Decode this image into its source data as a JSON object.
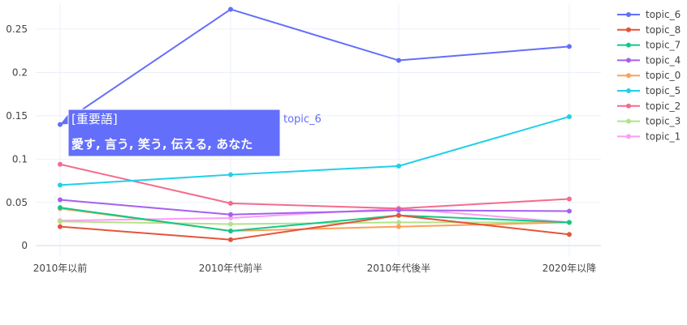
{
  "chart_data": {
    "type": "line",
    "categories": [
      "2010年以前",
      "2010年代前半",
      "2010年代後半",
      "2020年以降"
    ],
    "ylim": [
      -0.012,
      0.28
    ],
    "yticks": [
      0,
      0.05,
      0.1,
      0.15,
      0.2,
      0.25
    ],
    "ytick_labels": [
      "0",
      "0.05",
      "0.1",
      "0.15",
      "0.2",
      "0.25"
    ],
    "grid": true,
    "legend_position": "right",
    "series": [
      {
        "name": "topic_6",
        "color": "#636efa",
        "values": [
          0.14,
          0.273,
          0.214,
          0.23
        ]
      },
      {
        "name": "topic_8",
        "color": "#e4553a",
        "values": [
          0.022,
          0.007,
          0.035,
          0.013
        ]
      },
      {
        "name": "topic_7",
        "color": "#13c78c",
        "values": [
          0.044,
          0.017,
          0.035,
          0.027
        ]
      },
      {
        "name": "topic_4",
        "color": "#a560f0",
        "values": [
          0.053,
          0.036,
          0.041,
          0.04
        ]
      },
      {
        "name": "topic_0",
        "color": "#ff9f58",
        "values": [
          0.043,
          0.017,
          0.022,
          0.027
        ]
      },
      {
        "name": "topic_5",
        "color": "#1fd0ea",
        "values": [
          0.07,
          0.082,
          0.092,
          0.149
        ]
      },
      {
        "name": "topic_2",
        "color": "#f56b8d",
        "values": [
          0.094,
          0.049,
          0.043,
          0.054
        ]
      },
      {
        "name": "topic_3",
        "color": "#b3e28a",
        "values": [
          0.028,
          0.025,
          0.027,
          0.027
        ]
      },
      {
        "name": "topic_1",
        "color": "#fb9df6",
        "values": [
          0.029,
          0.032,
          0.043,
          0.027
        ]
      }
    ],
    "hover": {
      "series": "topic_6",
      "point_index": 0,
      "title": "[重要語]",
      "body": "愛す, 言う, 笑う, 伝える, あなた",
      "name_label": "topic_6"
    }
  }
}
